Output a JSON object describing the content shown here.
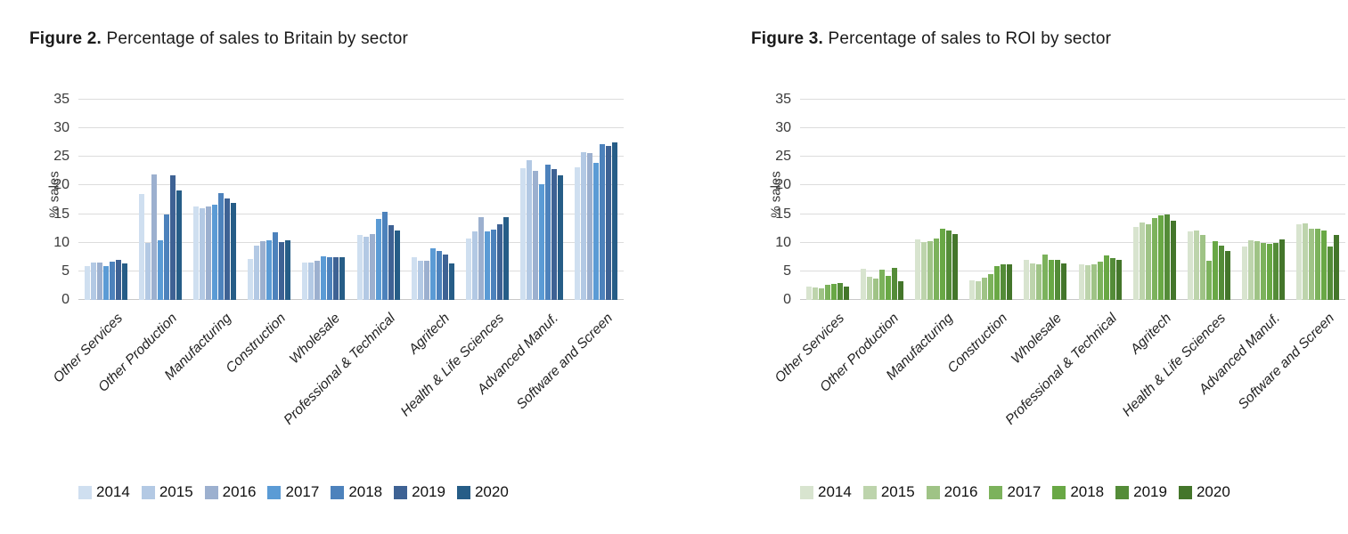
{
  "chart_data": [
    {
      "type": "bar",
      "title_bold": "Figure 2.",
      "title_rest": " Percentage of sales to Britain by sector",
      "ylabel": "% sales",
      "ylim": [
        0,
        35
      ],
      "yticks": [
        0,
        5,
        10,
        15,
        20,
        25,
        30,
        35
      ],
      "grid": true,
      "legend_position": "bottom",
      "categories": [
        "Other Services",
        "Other Production",
        "Manufacturing",
        "Construction",
        "Wholesale",
        "Professional & Technical",
        "Agritech",
        "Health & Life Sciences",
        "Advanced Manuf.",
        "Software and Screen"
      ],
      "series": [
        {
          "name": "2014",
          "color": "#cfdff0",
          "values": [
            5.9,
            18.5,
            16.4,
            7.2,
            6.5,
            11.3,
            7.5,
            10.7,
            23.0,
            23.2
          ]
        },
        {
          "name": "2015",
          "color": "#b3c9e4",
          "values": [
            6.5,
            10.0,
            16.1,
            9.5,
            6.6,
            11.1,
            6.8,
            12.0,
            24.5,
            25.8
          ]
        },
        {
          "name": "2016",
          "color": "#9cb0cf",
          "values": [
            6.5,
            22.0,
            16.4,
            10.3,
            6.9,
            11.5,
            6.8,
            14.5,
            22.6,
            25.7
          ]
        },
        {
          "name": "2017",
          "color": "#5b9bd5",
          "values": [
            5.9,
            10.5,
            16.6,
            10.5,
            7.7,
            14.1,
            9.1,
            12.0,
            20.2,
            24.0
          ]
        },
        {
          "name": "2018",
          "color": "#4d82bc",
          "values": [
            6.7,
            15.0,
            18.6,
            11.9,
            7.5,
            15.4,
            8.5,
            12.3,
            23.6,
            27.2
          ]
        },
        {
          "name": "2019",
          "color": "#3e6294",
          "values": [
            7.0,
            21.8,
            17.7,
            10.1,
            7.5,
            13.1,
            7.9,
            13.2,
            22.9,
            26.9
          ]
        },
        {
          "name": "2020",
          "color": "#265d87",
          "values": [
            6.4,
            19.2,
            17.0,
            10.5,
            7.5,
            12.1,
            6.4,
            14.4,
            21.8,
            27.5
          ]
        }
      ]
    },
    {
      "type": "bar",
      "title_bold": "Figure 3.",
      "title_rest": " Percentage of sales to ROI by sector",
      "ylabel": "% sales",
      "ylim": [
        0,
        35
      ],
      "yticks": [
        0,
        5,
        10,
        15,
        20,
        25,
        30,
        35
      ],
      "grid": true,
      "legend_position": "bottom",
      "categories": [
        "Other Services",
        "Other Production",
        "Manufacturing",
        "Construction",
        "Wholesale",
        "Professional & Technical",
        "Agritech",
        "Health & Life Sciences",
        "Advanced Manuf.",
        "Software and Screen"
      ],
      "series": [
        {
          "name": "2014",
          "color": "#d8e4cf",
          "values": [
            2.3,
            5.4,
            10.6,
            3.4,
            7.0,
            6.2,
            12.8,
            12.0,
            9.3,
            13.2
          ]
        },
        {
          "name": "2015",
          "color": "#bdd4ac",
          "values": [
            2.2,
            4.1,
            10.1,
            3.2,
            6.4,
            6.0,
            13.5,
            12.1,
            10.5,
            13.4
          ]
        },
        {
          "name": "2016",
          "color": "#9fc386",
          "values": [
            2.0,
            3.7,
            10.2,
            3.9,
            6.3,
            6.3,
            13.2,
            11.4,
            10.3,
            12.5
          ]
        },
        {
          "name": "2017",
          "color": "#7cb25c",
          "values": [
            2.7,
            5.3,
            10.7,
            4.5,
            7.9,
            6.7,
            14.3,
            6.9,
            10.0,
            12.4
          ]
        },
        {
          "name": "2018",
          "color": "#69a845",
          "values": [
            2.8,
            4.2,
            12.4,
            5.9,
            7.0,
            7.8,
            14.8,
            10.3,
            9.8,
            12.2
          ]
        },
        {
          "name": "2019",
          "color": "#548c38",
          "values": [
            3.0,
            5.6,
            12.1,
            6.2,
            7.0,
            7.3,
            15.0,
            9.5,
            9.9,
            9.4
          ]
        },
        {
          "name": "2020",
          "color": "#44762b",
          "values": [
            2.3,
            3.2,
            11.5,
            6.2,
            6.4,
            7.0,
            13.9,
            8.6,
            10.6,
            11.3
          ]
        }
      ]
    }
  ]
}
